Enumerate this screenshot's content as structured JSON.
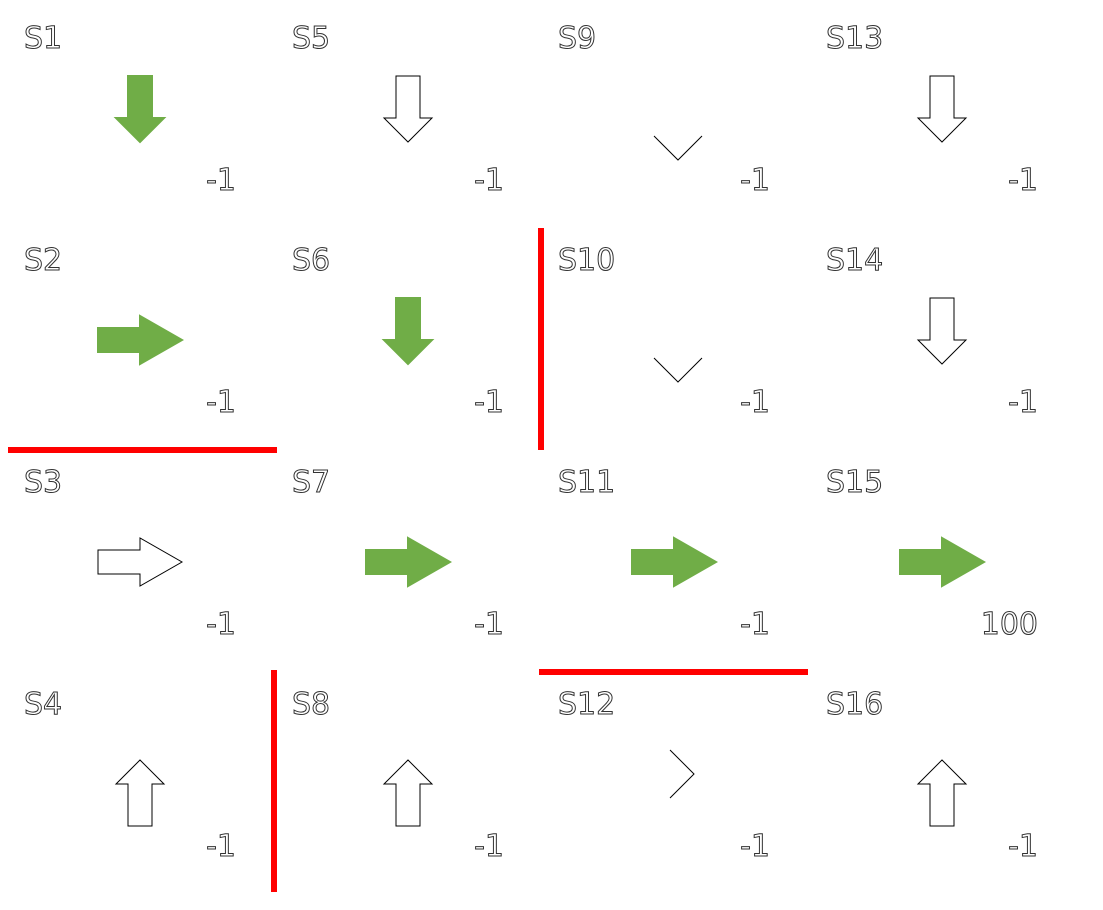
{
  "colors": {
    "policy_arrow": "#70ad47",
    "outline_arrow": "#000000",
    "text_fill": "#ffffff",
    "text_stroke": "#333333",
    "wall": "#ff0000"
  },
  "cells": [
    {
      "id": "s1",
      "label": "S1",
      "reward": "-1",
      "arrow": "down",
      "style": "filled"
    },
    {
      "id": "s2",
      "label": "S2",
      "reward": "-1",
      "arrow": "right",
      "style": "filled"
    },
    {
      "id": "s3",
      "label": "S3",
      "reward": "-1",
      "arrow": "right",
      "style": "outline"
    },
    {
      "id": "s4",
      "label": "S4",
      "reward": "-1",
      "arrow": "up",
      "style": "outline"
    },
    {
      "id": "s5",
      "label": "S5",
      "reward": "-1",
      "arrow": "down",
      "style": "outline"
    },
    {
      "id": "s6",
      "label": "S6",
      "reward": "-1",
      "arrow": "down",
      "style": "filled"
    },
    {
      "id": "s7",
      "label": "S7",
      "reward": "-1",
      "arrow": "right",
      "style": "filled"
    },
    {
      "id": "s8",
      "label": "S8",
      "reward": "-1",
      "arrow": "up",
      "style": "outline"
    },
    {
      "id": "s9",
      "label": "S9",
      "reward": "-1",
      "arrow": "chevron-down",
      "style": "outline"
    },
    {
      "id": "s10",
      "label": "S10",
      "reward": "-1",
      "arrow": "chevron-down",
      "style": "outline"
    },
    {
      "id": "s11",
      "label": "S11",
      "reward": "-1",
      "arrow": "right",
      "style": "filled"
    },
    {
      "id": "s12",
      "label": "S12",
      "reward": "-1",
      "arrow": "chevron-right",
      "style": "outline"
    },
    {
      "id": "s13",
      "label": "S13",
      "reward": "-1",
      "arrow": "down",
      "style": "outline"
    },
    {
      "id": "s14",
      "label": "S14",
      "reward": "-1",
      "arrow": "down",
      "style": "outline"
    },
    {
      "id": "s15",
      "label": "S15",
      "reward": "100",
      "arrow": "right",
      "style": "filled"
    },
    {
      "id": "s16",
      "label": "S16",
      "reward": "-1",
      "arrow": "up",
      "style": "outline"
    }
  ]
}
